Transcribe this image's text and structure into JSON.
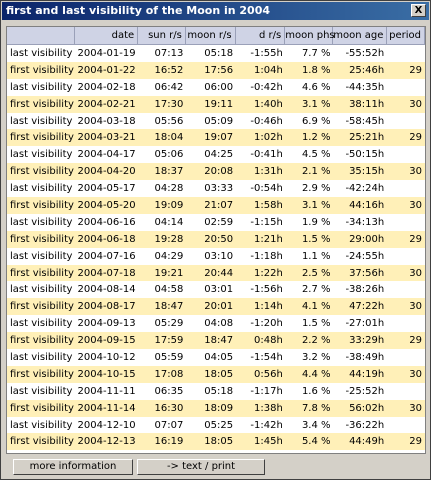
{
  "window": {
    "title": "first and last visibility of the Moon in 2004",
    "close_label": "X"
  },
  "table": {
    "columns": [
      "",
      "date",
      "sun r/s",
      "moon r/s",
      "d r/s",
      "moon phs",
      "moon age",
      "period"
    ],
    "rows": [
      [
        "last visibility",
        "2004-01-19",
        "07:13",
        "05:18",
        "-1:55h",
        "7.7 %",
        "-55:52h",
        ""
      ],
      [
        "first visibility",
        "2004-01-22",
        "16:52",
        "17:56",
        "1:04h",
        "1.8 %",
        "25:46h",
        "29"
      ],
      [
        "last visibility",
        "2004-02-18",
        "06:42",
        "06:00",
        "-0:42h",
        "4.6 %",
        "-44:35h",
        ""
      ],
      [
        "first visibility",
        "2004-02-21",
        "17:30",
        "19:11",
        "1:40h",
        "3.1 %",
        "38:11h",
        "30"
      ],
      [
        "last visibility",
        "2004-03-18",
        "05:56",
        "05:09",
        "-0:46h",
        "6.9 %",
        "-58:45h",
        ""
      ],
      [
        "first visibility",
        "2004-03-21",
        "18:04",
        "19:07",
        "1:02h",
        "1.2 %",
        "25:21h",
        "29"
      ],
      [
        "last visibility",
        "2004-04-17",
        "05:06",
        "04:25",
        "-0:41h",
        "4.5 %",
        "-50:15h",
        ""
      ],
      [
        "first visibility",
        "2004-04-20",
        "18:37",
        "20:08",
        "1:31h",
        "2.1 %",
        "35:15h",
        "30"
      ],
      [
        "last visibility",
        "2004-05-17",
        "04:28",
        "03:33",
        "-0:54h",
        "2.9 %",
        "-42:24h",
        ""
      ],
      [
        "first visibility",
        "2004-05-20",
        "19:09",
        "21:07",
        "1:58h",
        "3.1 %",
        "44:16h",
        "30"
      ],
      [
        "last visibility",
        "2004-06-16",
        "04:14",
        "02:59",
        "-1:15h",
        "1.9 %",
        "-34:13h",
        ""
      ],
      [
        "first visibility",
        "2004-06-18",
        "19:28",
        "20:50",
        "1:21h",
        "1.5 %",
        "29:00h",
        "29"
      ],
      [
        "last visibility",
        "2004-07-16",
        "04:29",
        "03:10",
        "-1:18h",
        "1.1 %",
        "-24:55h",
        ""
      ],
      [
        "first visibility",
        "2004-07-18",
        "19:21",
        "20:44",
        "1:22h",
        "2.5 %",
        "37:56h",
        "30"
      ],
      [
        "last visibility",
        "2004-08-14",
        "04:58",
        "03:01",
        "-1:56h",
        "2.7 %",
        "-38:26h",
        ""
      ],
      [
        "first visibility",
        "2004-08-17",
        "18:47",
        "20:01",
        "1:14h",
        "4.1 %",
        "47:22h",
        "30"
      ],
      [
        "last visibility",
        "2004-09-13",
        "05:29",
        "04:08",
        "-1:20h",
        "1.5 %",
        "-27:01h",
        ""
      ],
      [
        "first visibility",
        "2004-09-15",
        "17:59",
        "18:47",
        "0:48h",
        "2.2 %",
        "33:29h",
        "29"
      ],
      [
        "last visibility",
        "2004-10-12",
        "05:59",
        "04:05",
        "-1:54h",
        "3.2 %",
        "-38:49h",
        ""
      ],
      [
        "first visibility",
        "2004-10-15",
        "17:08",
        "18:05",
        "0:56h",
        "4.4 %",
        "44:19h",
        "30"
      ],
      [
        "last visibility",
        "2004-11-11",
        "06:35",
        "05:18",
        "-1:17h",
        "1.6 %",
        "-25:52h",
        ""
      ],
      [
        "first visibility",
        "2004-11-14",
        "16:30",
        "18:09",
        "1:38h",
        "7.8 %",
        "56:02h",
        "30"
      ],
      [
        "last visibility",
        "2004-12-10",
        "07:07",
        "05:25",
        "-1:42h",
        "3.4 %",
        "-36:22h",
        ""
      ],
      [
        "first visibility",
        "2004-12-13",
        "16:19",
        "18:05",
        "1:45h",
        "5.4 %",
        "44:49h",
        "29"
      ]
    ]
  },
  "buttons": {
    "more_info": "more information",
    "text_print": "-> text / print"
  }
}
